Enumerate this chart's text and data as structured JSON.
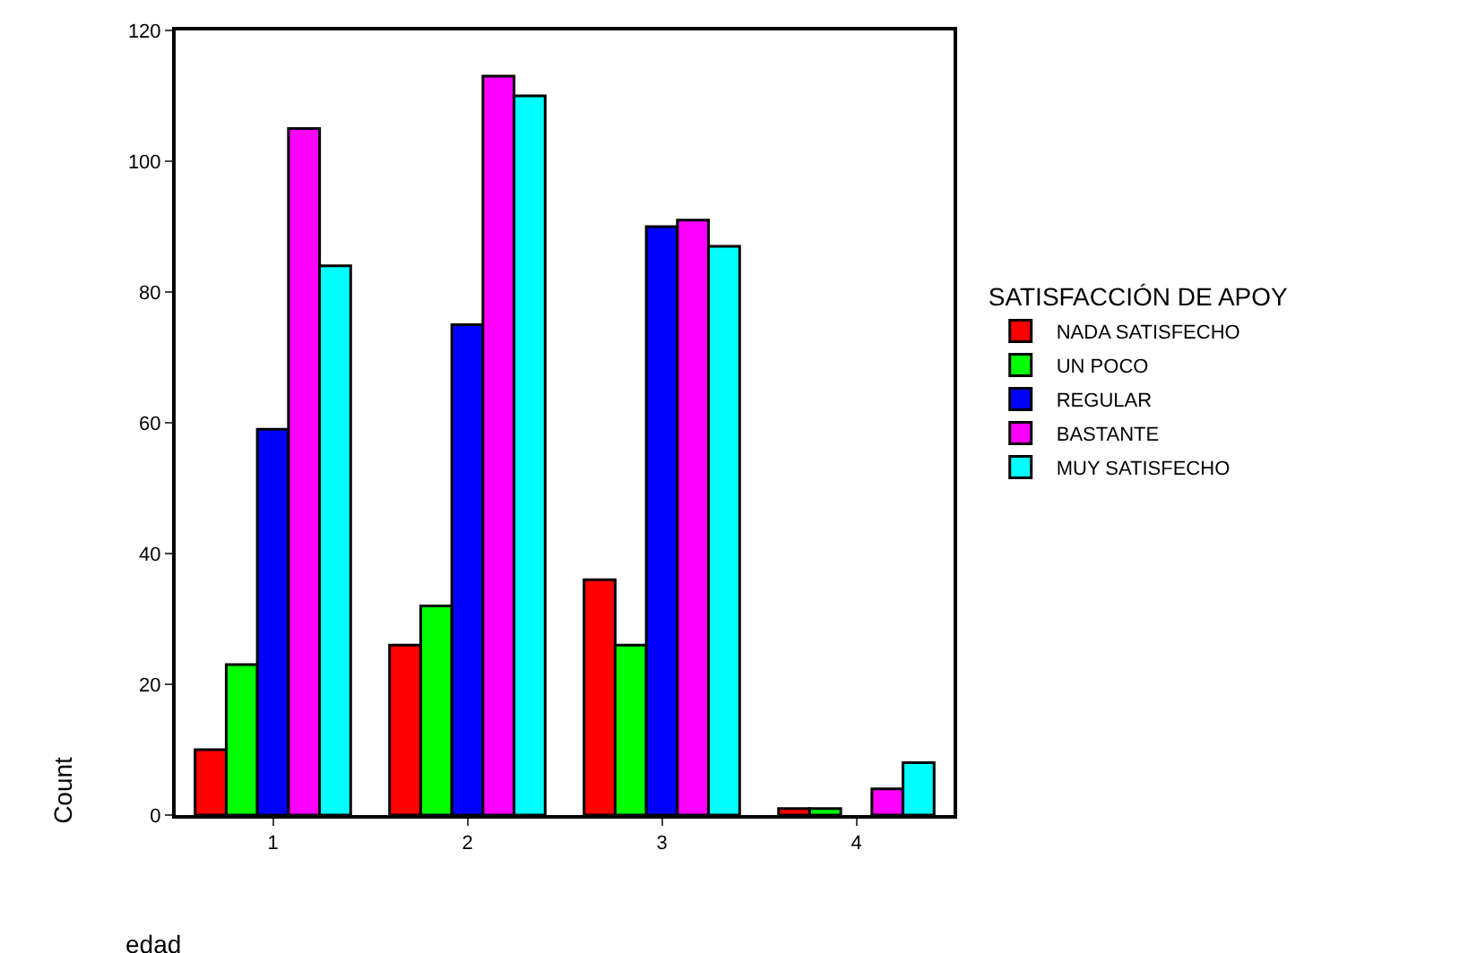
{
  "chart_data": {
    "type": "bar",
    "xlabel": "edad",
    "ylabel": "Count",
    "legend_title": "SATISFACCIÓN DE APOY",
    "categories": [
      "1",
      "2",
      "3",
      "4"
    ],
    "series": [
      {
        "name": "NADA SATISFECHO",
        "color": "#ff0000",
        "values": [
          10,
          26,
          36,
          1
        ]
      },
      {
        "name": "UN POCO",
        "color": "#00ff00",
        "values": [
          23,
          32,
          26,
          1
        ]
      },
      {
        "name": "REGULAR",
        "color": "#0000ff",
        "values": [
          59,
          75,
          90,
          null
        ]
      },
      {
        "name": "BASTANTE",
        "color": "#ff00ff",
        "values": [
          105,
          113,
          91,
          4
        ]
      },
      {
        "name": "MUY SATISFECHO",
        "color": "#00ffff",
        "values": [
          84,
          110,
          87,
          8
        ]
      }
    ],
    "ylim": [
      0,
      120
    ],
    "yticks": [
      0,
      20,
      40,
      60,
      80,
      100,
      120
    ],
    "grid": false,
    "legend": "right"
  }
}
